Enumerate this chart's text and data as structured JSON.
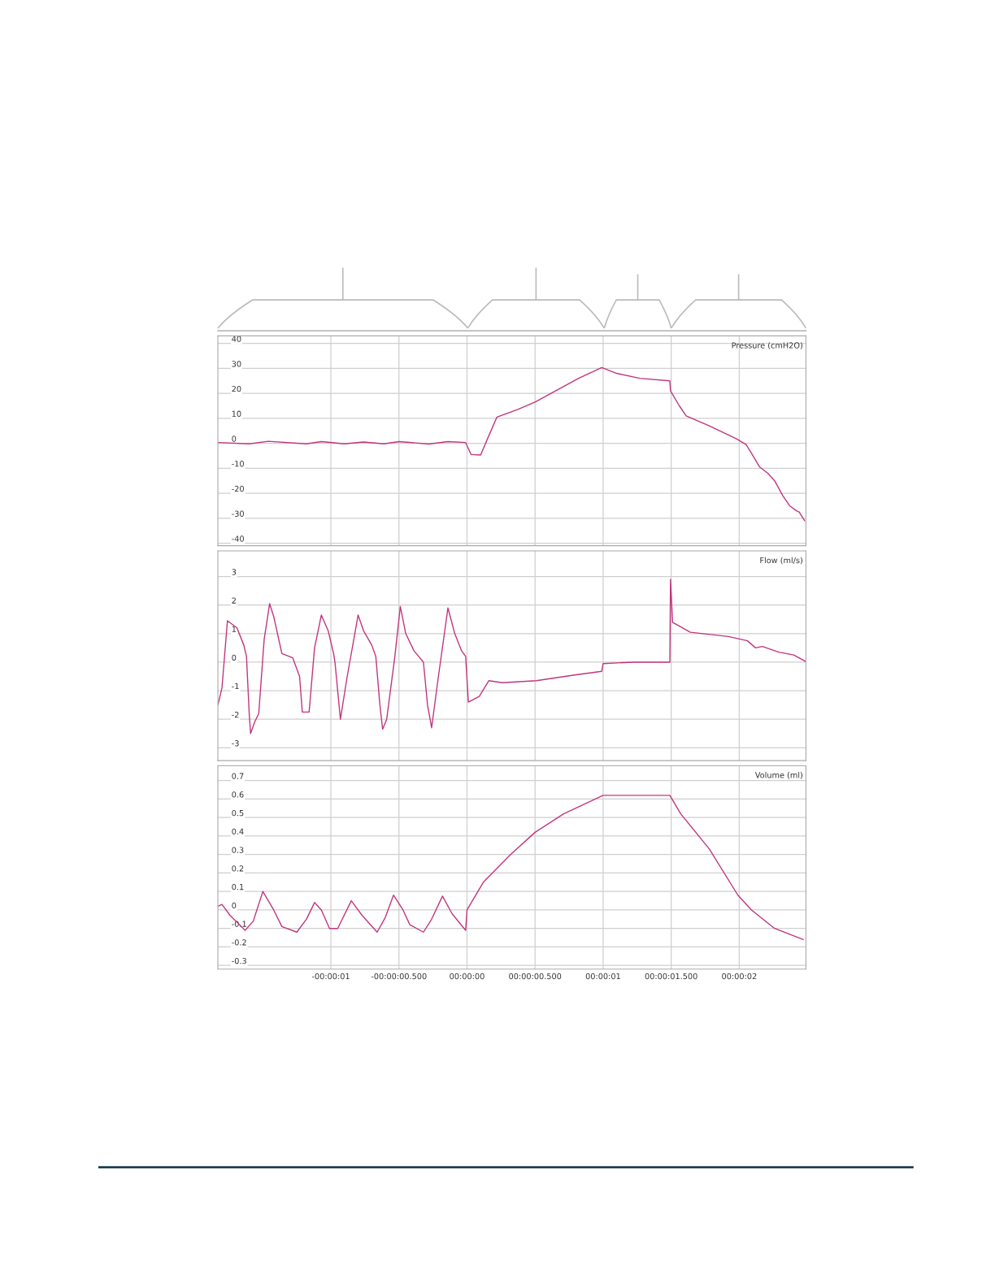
{
  "chart_data": [
    {
      "type": "line",
      "title": "Pressure (cmH2O)",
      "color": "#c2357f",
      "grid": true,
      "tick_labels": "y",
      "xlim": [
        -1.83,
        2.49
      ],
      "ylim": [
        -41,
        43
      ],
      "xticks": [
        {
          "value": -1,
          "label": null
        },
        {
          "value": -0.5,
          "label": null
        },
        {
          "value": 0,
          "label": null
        },
        {
          "value": 0.5,
          "label": null
        },
        {
          "value": 1,
          "label": null
        },
        {
          "value": 1.5,
          "label": null
        },
        {
          "value": 2,
          "label": null
        }
      ],
      "yticks": [
        40,
        30,
        20,
        10,
        0,
        -10,
        -20,
        -30,
        -40
      ],
      "x": [
        -1.83,
        -1.6,
        -1.46,
        -1.18,
        -1.07,
        -0.9,
        -0.76,
        -0.61,
        -0.5,
        -0.28,
        -0.14,
        -0.01,
        0.03,
        0.1,
        0.16,
        0.22,
        0.37,
        0.5,
        0.65,
        0.82,
        0.99,
        1.1,
        1.27,
        1.49,
        1.495,
        1.56,
        1.61,
        1.78,
        1.98,
        2.05,
        2.09,
        2.15,
        2.21,
        2.26,
        2.32,
        2.37,
        2.42,
        2.44,
        2.48
      ],
      "values": [
        0.3,
        -0.2,
        0.8,
        -0.2,
        0.7,
        -0.2,
        0.5,
        -0.2,
        0.7,
        -0.3,
        0.7,
        0.3,
        -4.5,
        -4.7,
        3,
        10.5,
        13.5,
        16.5,
        21,
        26,
        30.3,
        28,
        26,
        25,
        21,
        15,
        11,
        7,
        1.8,
        -0.5,
        -4,
        -9.5,
        -12,
        -15,
        -21,
        -25,
        -27,
        -27.5,
        -31
      ]
    },
    {
      "type": "line",
      "title": "Flow (ml/s)",
      "color": "#c2357f",
      "grid": true,
      "tick_labels": "y",
      "xlim": [
        -1.83,
        2.49
      ],
      "ylim": [
        -3.45,
        3.9
      ],
      "xticks": [
        {
          "value": -1,
          "label": null
        },
        {
          "value": -0.5,
          "label": null
        },
        {
          "value": 0,
          "label": null
        },
        {
          "value": 0.5,
          "label": null
        },
        {
          "value": 1,
          "label": null
        },
        {
          "value": 1.5,
          "label": null
        },
        {
          "value": 2,
          "label": null
        }
      ],
      "yticks": [
        3,
        2,
        1,
        0,
        -1,
        -2,
        -3
      ],
      "x": [
        -1.83,
        -1.8,
        -1.76,
        -1.69,
        -1.64,
        -1.62,
        -1.6,
        -1.59,
        -1.56,
        -1.53,
        -1.49,
        -1.45,
        -1.42,
        -1.36,
        -1.28,
        -1.23,
        -1.21,
        -1.16,
        -1.12,
        -1.07,
        -1.02,
        -0.98,
        -0.97,
        -0.93,
        -0.88,
        -0.8,
        -0.76,
        -0.7,
        -0.67,
        -0.64,
        -0.62,
        -0.59,
        -0.53,
        -0.49,
        -0.45,
        -0.39,
        -0.32,
        -0.29,
        -0.26,
        -0.21,
        -0.14,
        -0.09,
        -0.04,
        -0.01,
        0.01,
        0.09,
        0.16,
        0.26,
        0.51,
        0.79,
        0.99,
        1.0,
        1.22,
        1.49,
        1.495,
        1.51,
        1.64,
        1.92,
        2.06,
        2.12,
        2.17,
        2.29,
        2.4,
        2.49
      ],
      "values": [
        -1.5,
        -0.9,
        1.45,
        1.2,
        0.6,
        0.2,
        -1.8,
        -2.5,
        -2.1,
        -1.8,
        0.8,
        2.05,
        1.6,
        0.3,
        0.15,
        -0.5,
        -1.75,
        -1.75,
        0.5,
        1.65,
        1.1,
        0.3,
        0,
        -2.0,
        -0.5,
        1.65,
        1.1,
        0.6,
        0.2,
        -1.5,
        -2.35,
        -2.0,
        0.2,
        1.95,
        1.0,
        0.4,
        0.0,
        -1.5,
        -2.3,
        -0.5,
        1.9,
        1.0,
        0.4,
        0.2,
        -1.4,
        -1.2,
        -0.65,
        -0.72,
        -0.65,
        -0.45,
        -0.32,
        -0.05,
        0.0,
        0.0,
        2.9,
        1.4,
        1.05,
        0.9,
        0.75,
        0.5,
        0.55,
        0.35,
        0.25,
        0.02
      ]
    },
    {
      "type": "line",
      "title": "Volume (ml)",
      "color": "#c2357f",
      "grid": true,
      "xlim": [
        -1.83,
        2.49
      ],
      "ylim": [
        -0.32,
        0.78
      ],
      "xticks": [
        {
          "value": -1,
          "label": "-00:00:01"
        },
        {
          "value": -0.5,
          "label": "-00:00:00.500"
        },
        {
          "value": 0,
          "label": "00:00:00"
        },
        {
          "value": 0.5,
          "label": "00:00:00.500"
        },
        {
          "value": 1,
          "label": "00:00:01"
        },
        {
          "value": 1.5,
          "label": "00:00:01.500"
        },
        {
          "value": 2,
          "label": "00:00:02"
        }
      ],
      "yticks": [
        0.7,
        0.6,
        0.5,
        0.4,
        0.3,
        0.2,
        0.1,
        0,
        -0.1,
        -0.2,
        -0.3
      ],
      "x": [
        -1.83,
        -1.8,
        -1.74,
        -1.63,
        -1.57,
        -1.5,
        -1.42,
        -1.36,
        -1.25,
        -1.18,
        -1.12,
        -1.07,
        -1.01,
        -0.95,
        -0.85,
        -0.77,
        -0.66,
        -0.6,
        -0.54,
        -0.47,
        -0.42,
        -0.32,
        -0.26,
        -0.18,
        -0.11,
        -0.01,
        0.0,
        0.12,
        0.32,
        0.5,
        0.71,
        1.0,
        1.49,
        1.57,
        1.78,
        1.99,
        2.09,
        2.26,
        2.47
      ],
      "values": [
        0.02,
        0.03,
        -0.03,
        -0.11,
        -0.06,
        0.1,
        0.0,
        -0.09,
        -0.12,
        -0.05,
        0.04,
        0.0,
        -0.1,
        -0.1,
        0.05,
        -0.03,
        -0.12,
        -0.04,
        0.08,
        0.0,
        -0.08,
        -0.12,
        -0.05,
        0.075,
        -0.02,
        -0.11,
        0.0,
        0.15,
        0.3,
        0.42,
        0.52,
        0.62,
        0.62,
        0.52,
        0.33,
        0.08,
        0.0,
        -0.1,
        -0.16
      ]
    }
  ]
}
